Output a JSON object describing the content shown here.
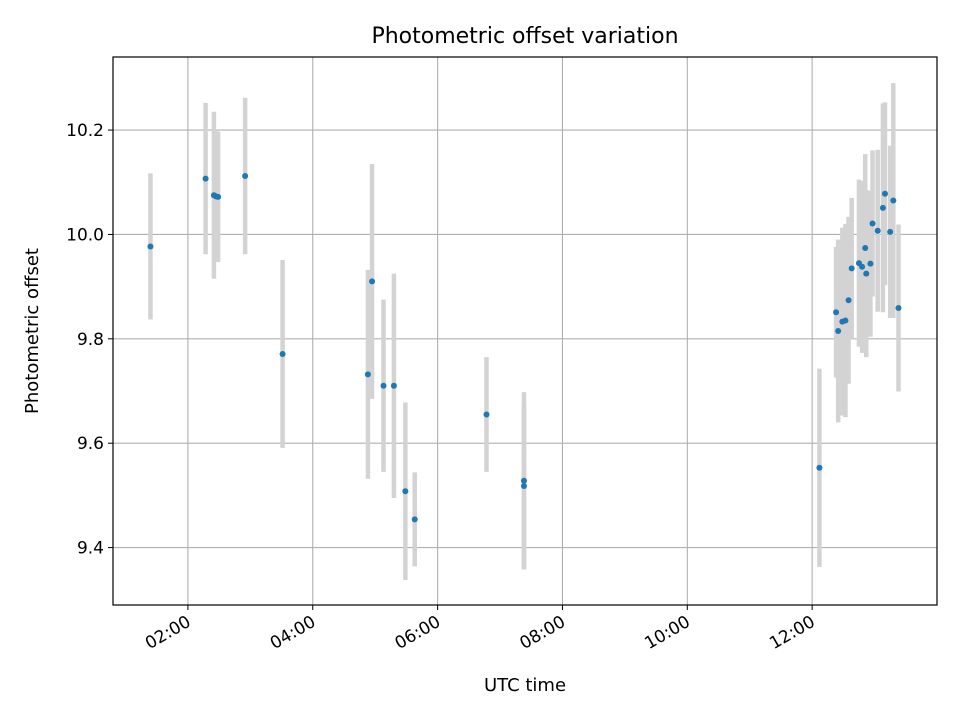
{
  "chart_data": {
    "type": "scatter",
    "title": "Photometric offset variation",
    "xlabel": "UTC time",
    "ylabel": "Photometric offset",
    "x_axis": "time",
    "xlim": [
      "00:48",
      "14:00"
    ],
    "ylim": [
      9.29,
      10.34
    ],
    "x_ticks": [
      "02:00",
      "04:00",
      "06:00",
      "08:00",
      "10:00",
      "12:00"
    ],
    "y_ticks": [
      9.4,
      9.6,
      9.8,
      10.0,
      10.2
    ],
    "grid": true,
    "colors": {
      "points": "#1f77b4",
      "errorbars": "#d3d3d3",
      "grid": "#b0b0b0"
    },
    "points": [
      {
        "x": "01:24",
        "y": 9.977,
        "yerr": 0.14
      },
      {
        "x": "02:17",
        "y": 10.107,
        "yerr": 0.145
      },
      {
        "x": "02:25",
        "y": 10.075,
        "yerr": 0.16
      },
      {
        "x": "02:27",
        "y": 10.073,
        "yerr": 0.125
      },
      {
        "x": "02:29",
        "y": 10.072,
        "yerr": 0.125
      },
      {
        "x": "02:55",
        "y": 10.112,
        "yerr": 0.15
      },
      {
        "x": "03:31",
        "y": 9.771,
        "yerr": 0.18
      },
      {
        "x": "04:53",
        "y": 9.732,
        "yerr": 0.2
      },
      {
        "x": "04:57",
        "y": 9.91,
        "yerr": 0.225
      },
      {
        "x": "05:08",
        "y": 9.71,
        "yerr": 0.165
      },
      {
        "x": "05:18",
        "y": 9.71,
        "yerr": 0.215
      },
      {
        "x": "05:29",
        "y": 9.508,
        "yerr": 0.17
      },
      {
        "x": "05:38",
        "y": 9.454,
        "yerr": 0.09
      },
      {
        "x": "06:47",
        "y": 9.655,
        "yerr": 0.11
      },
      {
        "x": "07:23",
        "y": 9.528,
        "yerr": 0.17
      },
      {
        "x": "07:23",
        "y": 9.518,
        "yerr": 0.16
      },
      {
        "x": "12:07",
        "y": 9.553,
        "yerr": 0.19
      },
      {
        "x": "12:23",
        "y": 9.851,
        "yerr": 0.125
      },
      {
        "x": "12:25",
        "y": 9.815,
        "yerr": 0.175
      },
      {
        "x": "12:29",
        "y": 9.833,
        "yerr": 0.18
      },
      {
        "x": "12:32",
        "y": 9.835,
        "yerr": 0.185
      },
      {
        "x": "12:35",
        "y": 9.874,
        "yerr": 0.16
      },
      {
        "x": "12:38",
        "y": 9.935,
        "yerr": 0.135
      },
      {
        "x": "12:45",
        "y": 9.945,
        "yerr": 0.16
      },
      {
        "x": "12:48",
        "y": 9.938,
        "yerr": 0.165
      },
      {
        "x": "12:51",
        "y": 9.974,
        "yerr": 0.18
      },
      {
        "x": "12:52",
        "y": 9.925,
        "yerr": 0.16
      },
      {
        "x": "12:56",
        "y": 9.944,
        "yerr": 0.14
      },
      {
        "x": "12:58",
        "y": 10.021,
        "yerr": 0.14
      },
      {
        "x": "13:03",
        "y": 10.007,
        "yerr": 0.155
      },
      {
        "x": "13:08",
        "y": 10.051,
        "yerr": 0.2
      },
      {
        "x": "13:10",
        "y": 10.078,
        "yerr": 0.175
      },
      {
        "x": "13:15",
        "y": 10.005,
        "yerr": 0.165
      },
      {
        "x": "13:18",
        "y": 10.065,
        "yerr": 0.225
      },
      {
        "x": "13:23",
        "y": 9.859,
        "yerr": 0.16
      }
    ]
  }
}
